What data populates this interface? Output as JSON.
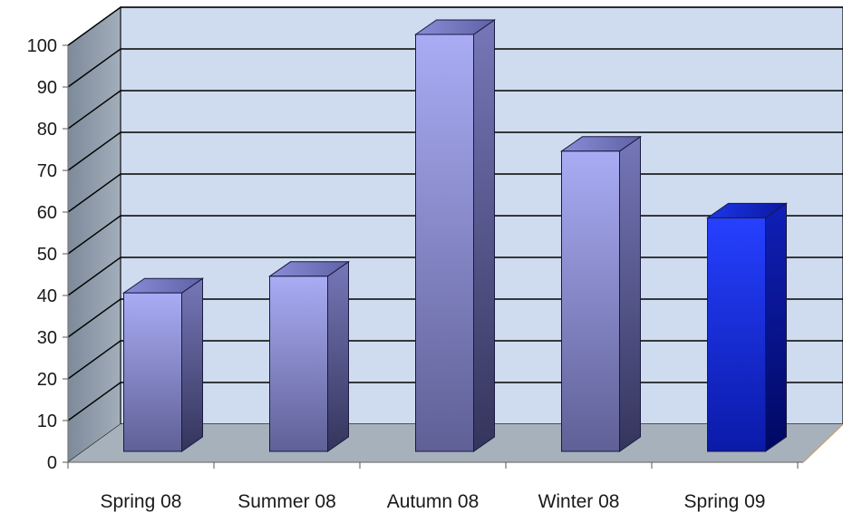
{
  "chart_data": {
    "type": "bar",
    "categories": [
      "Spring 08",
      "Summer 08",
      "Autumn 08",
      "Winter 08",
      "Spring 09"
    ],
    "values": [
      38,
      42,
      100,
      72,
      56
    ],
    "highlight_index": 4,
    "title": "",
    "xlabel": "",
    "ylabel": "",
    "ylim": [
      0,
      100
    ],
    "yticks": [
      0,
      10,
      20,
      30,
      40,
      50,
      60,
      70,
      80,
      90,
      100
    ],
    "grid": true,
    "legend": "none",
    "colors": {
      "bar": "#8c8ed8",
      "bar_highlight": "#1a2ee6",
      "back_wall": "#cfdcef",
      "side_wall": "#8c9aaa",
      "floor": "#a7b1bb",
      "grid": "#000000"
    }
  }
}
